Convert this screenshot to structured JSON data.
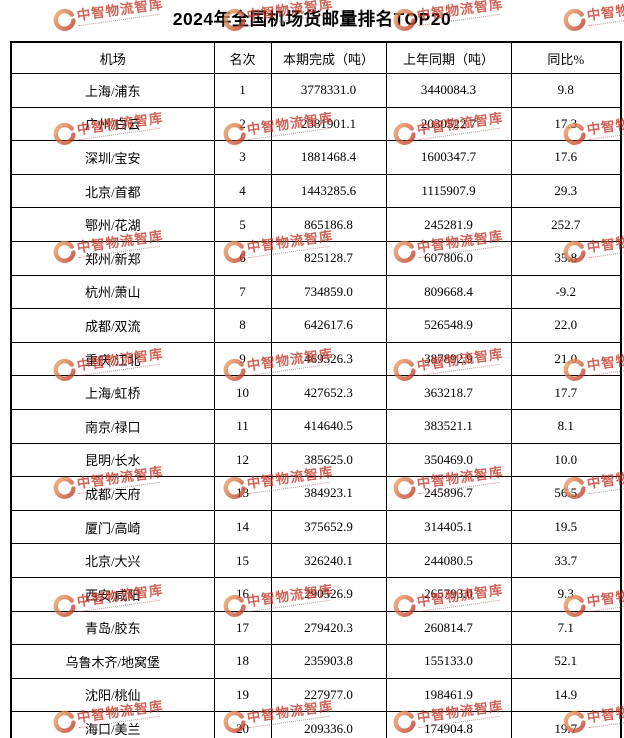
{
  "title": "2024年全国机场货邮量排名TOP20",
  "watermark": {
    "text": "中智物流智库"
  },
  "table": {
    "columns": [
      "机场",
      "名次",
      "本期完成（吨）",
      "上年同期（吨）",
      "同比%"
    ],
    "rows": [
      {
        "airport": "上海/浦东",
        "rank": "1",
        "current": "3778331.0",
        "previous": "3440084.3",
        "yoy": "9.8"
      },
      {
        "airport": "广州/白云",
        "rank": "2",
        "current": "2381901.1",
        "previous": "2030522.7",
        "yoy": "17.3"
      },
      {
        "airport": "深圳/宝安",
        "rank": "3",
        "current": "1881468.4",
        "previous": "1600347.7",
        "yoy": "17.6"
      },
      {
        "airport": "北京/首都",
        "rank": "4",
        "current": "1443285.6",
        "previous": "1115907.9",
        "yoy": "29.3"
      },
      {
        "airport": "鄂州/花湖",
        "rank": "5",
        "current": "865186.8",
        "previous": "245281.9",
        "yoy": "252.7"
      },
      {
        "airport": "郑州/新郑",
        "rank": "6",
        "current": "825128.7",
        "previous": "607806.0",
        "yoy": "35.8"
      },
      {
        "airport": "杭州/萧山",
        "rank": "7",
        "current": "734859.0",
        "previous": "809668.4",
        "yoy": "-9.2"
      },
      {
        "airport": "成都/双流",
        "rank": "8",
        "current": "642617.6",
        "previous": "526548.9",
        "yoy": "22.0"
      },
      {
        "airport": "重庆/江北",
        "rank": "9",
        "current": "469526.3",
        "previous": "387892.9",
        "yoy": "21.0"
      },
      {
        "airport": "上海/虹桥",
        "rank": "10",
        "current": "427652.3",
        "previous": "363218.7",
        "yoy": "17.7"
      },
      {
        "airport": "南京/禄口",
        "rank": "11",
        "current": "414640.5",
        "previous": "383521.1",
        "yoy": "8.1"
      },
      {
        "airport": "昆明/长水",
        "rank": "12",
        "current": "385625.0",
        "previous": "350469.0",
        "yoy": "10.0"
      },
      {
        "airport": "成都/天府",
        "rank": "13",
        "current": "384923.1",
        "previous": "245896.7",
        "yoy": "56.5"
      },
      {
        "airport": "厦门/高崎",
        "rank": "14",
        "current": "375652.9",
        "previous": "314405.1",
        "yoy": "19.5"
      },
      {
        "airport": "北京/大兴",
        "rank": "15",
        "current": "326240.1",
        "previous": "244080.5",
        "yoy": "33.7"
      },
      {
        "airport": "西安/咸阳",
        "rank": "16",
        "current": "290526.9",
        "previous": "265793.0",
        "yoy": "9.3"
      },
      {
        "airport": "青岛/胶东",
        "rank": "17",
        "current": "279420.3",
        "previous": "260814.7",
        "yoy": "7.1"
      },
      {
        "airport": "乌鲁木齐/地窝堡",
        "rank": "18",
        "current": "235903.8",
        "previous": "155133.0",
        "yoy": "52.1"
      },
      {
        "airport": "沈阳/桃仙",
        "rank": "19",
        "current": "227977.0",
        "previous": "198461.9",
        "yoy": "14.9"
      },
      {
        "airport": "海口/美兰",
        "rank": "20",
        "current": "209336.0",
        "previous": "174904.8",
        "yoy": "19.7"
      }
    ]
  }
}
